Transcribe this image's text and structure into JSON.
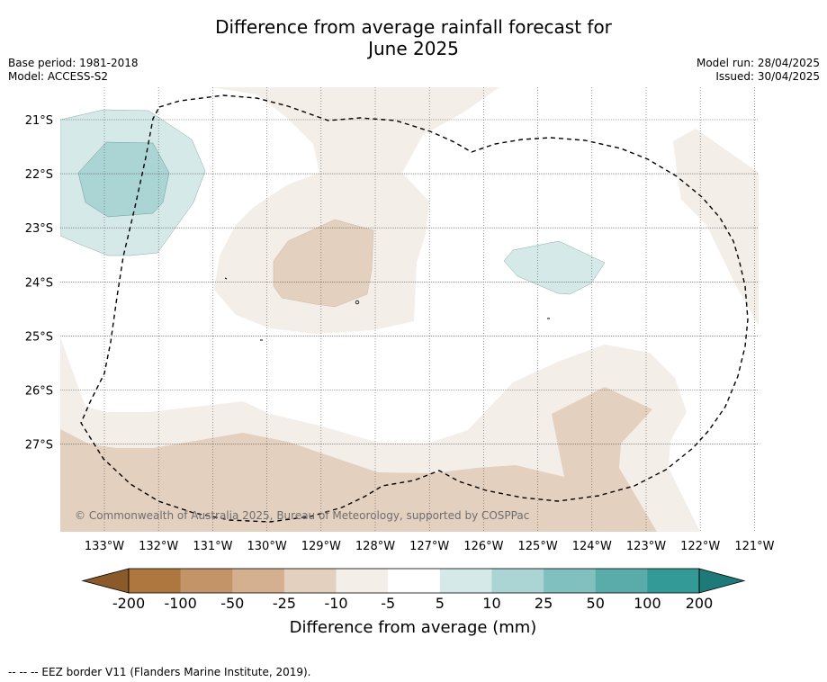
{
  "title_line1": "Difference from average rainfall forecast for",
  "title_line2": "June 2025",
  "base_period": "Base period: 1981-2018",
  "model": "Model: ACCESS-S2",
  "model_run": "Model run: 28/04/2025",
  "issued": "Issued: 30/04/2025",
  "copyright": "© Commonwealth of Australia 2025, Bureau of Meteorology, supported by COSPPac",
  "lat_labels": [
    "21°S",
    "22°S",
    "23°S",
    "24°S",
    "25°S",
    "26°S",
    "27°S"
  ],
  "lon_labels": [
    "133°W",
    "132°W",
    "131°W",
    "130°W",
    "129°W",
    "128°W",
    "127°W",
    "126°W",
    "125°W",
    "124°W",
    "123°W",
    "122°W",
    "121°W"
  ],
  "colorbar": {
    "ticks": [
      "-200",
      "-100",
      "-50",
      "-25",
      "-10",
      "-5",
      "5",
      "10",
      "25",
      "50",
      "100",
      "200"
    ],
    "colors": [
      "#ae7740",
      "#c39468",
      "#d4b090",
      "#e4d0bf",
      "#f4eee9",
      "#ffffff",
      "#d5eae8",
      "#aad5d4",
      "#80c0bf",
      "#5aacab",
      "#339a98"
    ],
    "under_color": "#8a5a2b",
    "over_color": "#1e7a78",
    "label": "Difference from average (mm)"
  },
  "legend_note": "--  --  -- EEZ border V11 (Flanders Marine Institute, 2019)."
}
